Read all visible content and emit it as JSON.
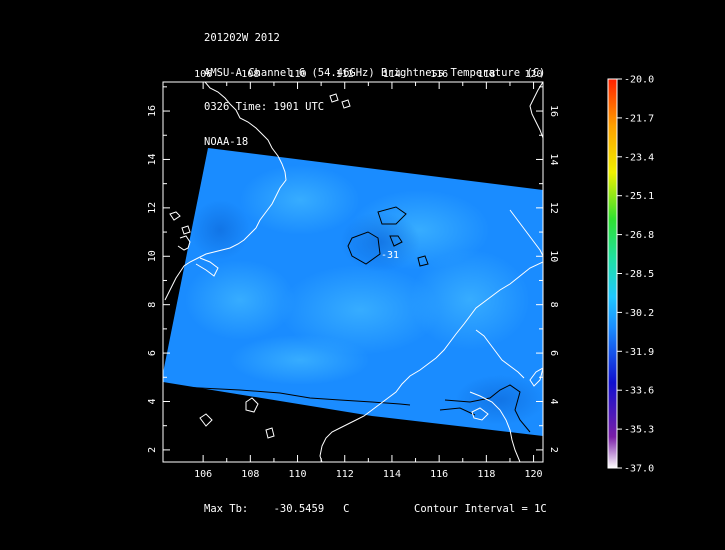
{
  "title": {
    "line1": "201202W 2012",
    "line2": "AMSU-A Channel 6 (54.46GHz) Brightness Temperature (C)",
    "line3": "0326 Time: 1901 UTC",
    "line4": "NOAA-18"
  },
  "footer": {
    "max_label": "Max Tb:",
    "max_value": "-30.5459",
    "max_unit": "C",
    "contour_label": "Contour Interval = 1C"
  },
  "contour_label_value": "-31",
  "colors": {
    "background": "#000000",
    "swath_base": "#1a8cff",
    "swath_light": "#2fa6ff",
    "coastline": "#ffffff",
    "contour": "#000000"
  },
  "chart_data": {
    "type": "heatmap",
    "x_axis_ticks": [
      "106",
      "108",
      "110",
      "112",
      "114",
      "116",
      "118",
      "120"
    ],
    "y_axis_ticks": [
      "2",
      "4",
      "6",
      "8",
      "10",
      "12",
      "14",
      "16"
    ],
    "xlim": [
      104.3,
      120.4
    ],
    "ylim": [
      1.5,
      17.2
    ],
    "colorbar": {
      "labels": [
        "-20.0",
        "-21.7",
        "-23.4",
        "-25.1",
        "-26.8",
        "-28.5",
        "-30.2",
        "-31.9",
        "-33.6",
        "-35.3",
        "-37.0"
      ],
      "range": [
        -37.0,
        -20.0
      ],
      "stops": [
        "#ffffff",
        "#7a1fa8",
        "#1010d0",
        "#1a8cff",
        "#20c8ff",
        "#20e0a0",
        "#30e030",
        "#f0f000",
        "#ffa000",
        "#ff2000"
      ]
    }
  }
}
